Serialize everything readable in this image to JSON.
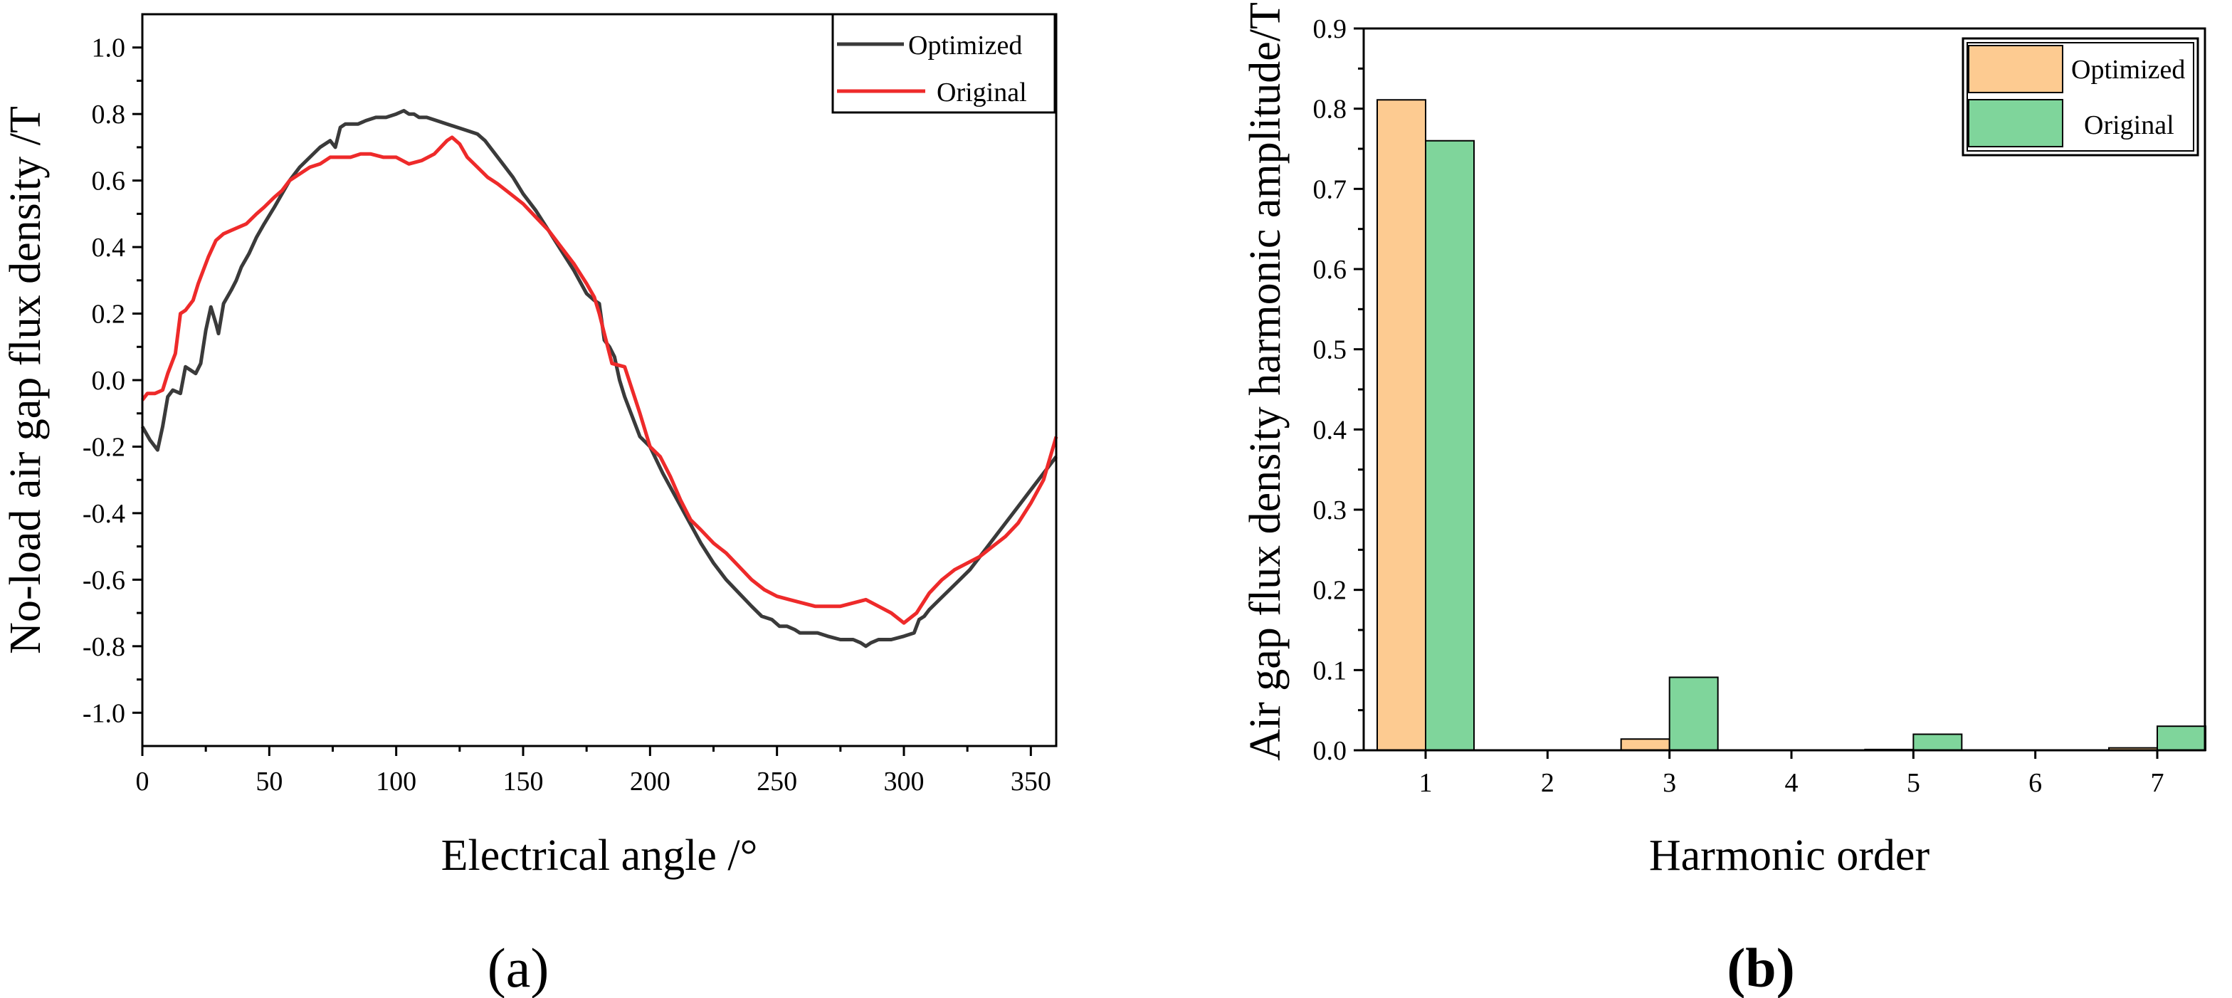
{
  "chart_data": [
    {
      "type": "line",
      "panel_label": "a",
      "title": "",
      "xlabel": "Electrical angle /°",
      "ylabel": "No-load air gap flux density /T",
      "xlim": [
        0,
        360
      ],
      "ylim": [
        -1.1,
        1.1
      ],
      "xticks": [
        0,
        50,
        100,
        150,
        200,
        250,
        300,
        350
      ],
      "yticks": [
        -1.0,
        -0.8,
        -0.6,
        -0.4,
        -0.2,
        0.0,
        0.2,
        0.4,
        0.6,
        0.8,
        1.0
      ],
      "ytick_labels": [
        "-1.0",
        "-0.8",
        "-0.6",
        "-0.4",
        "-0.2",
        "0.0",
        "0.2",
        "0.4",
        "0.6",
        "0.8",
        "1.0"
      ],
      "legend_position": "top-right",
      "series": [
        {
          "name": "Optimized",
          "color": "#3a3a3a",
          "x": [
            0,
            3,
            6,
            8,
            10,
            12,
            15,
            17,
            19,
            21,
            23,
            25,
            27,
            29,
            30,
            32,
            35,
            37,
            39,
            42,
            45,
            48,
            52,
            55,
            58,
            62,
            66,
            70,
            74,
            76,
            78,
            80,
            82,
            85,
            88,
            92,
            96,
            100,
            103,
            105,
            107,
            109,
            112,
            116,
            120,
            124,
            128,
            132,
            135,
            138,
            142,
            146,
            150,
            155,
            160,
            165,
            170,
            175,
            178,
            180,
            182,
            184,
            186,
            188,
            190,
            193,
            196,
            200,
            205,
            210,
            215,
            220,
            225,
            230,
            235,
            240,
            244,
            248,
            251,
            254,
            257,
            259,
            262,
            266,
            270,
            275,
            280,
            283,
            285,
            287,
            290,
            295,
            300,
            304,
            306,
            308,
            310,
            314,
            318,
            322,
            326,
            330,
            335,
            340,
            345,
            350,
            355,
            360
          ],
          "values": [
            -0.14,
            -0.18,
            -0.21,
            -0.14,
            -0.05,
            -0.03,
            -0.04,
            0.04,
            0.03,
            0.02,
            0.05,
            0.15,
            0.22,
            0.17,
            0.14,
            0.23,
            0.27,
            0.3,
            0.34,
            0.38,
            0.43,
            0.47,
            0.52,
            0.56,
            0.6,
            0.64,
            0.67,
            0.7,
            0.72,
            0.7,
            0.76,
            0.77,
            0.77,
            0.77,
            0.78,
            0.79,
            0.79,
            0.8,
            0.81,
            0.8,
            0.8,
            0.79,
            0.79,
            0.78,
            0.77,
            0.76,
            0.75,
            0.74,
            0.72,
            0.69,
            0.65,
            0.61,
            0.56,
            0.51,
            0.45,
            0.39,
            0.33,
            0.26,
            0.24,
            0.23,
            0.12,
            0.1,
            0.07,
            0.0,
            -0.05,
            -0.11,
            -0.17,
            -0.2,
            -0.28,
            -0.35,
            -0.42,
            -0.49,
            -0.55,
            -0.6,
            -0.64,
            -0.68,
            -0.71,
            -0.72,
            -0.74,
            -0.74,
            -0.75,
            -0.76,
            -0.76,
            -0.76,
            -0.77,
            -0.78,
            -0.78,
            -0.79,
            -0.8,
            -0.79,
            -0.78,
            -0.78,
            -0.77,
            -0.76,
            -0.72,
            -0.71,
            -0.69,
            -0.66,
            -0.63,
            -0.6,
            -0.57,
            -0.53,
            -0.48,
            -0.43,
            -0.38,
            -0.33,
            -0.28,
            -0.23
          ]
        },
        {
          "name": "Original",
          "color": "#ee2a2a",
          "x": [
            0,
            2,
            5,
            8,
            10,
            13,
            15,
            17,
            20,
            22,
            24,
            26,
            29,
            32,
            35,
            38,
            41,
            45,
            48,
            52,
            55,
            58,
            62,
            66,
            70,
            74,
            78,
            82,
            86,
            90,
            95,
            100,
            105,
            110,
            115,
            120,
            122,
            125,
            128,
            132,
            136,
            140,
            145,
            150,
            155,
            160,
            165,
            170,
            175,
            178,
            180,
            182,
            185,
            190,
            193,
            196,
            200,
            204,
            208,
            212,
            216,
            220,
            225,
            230,
            235,
            240,
            245,
            250,
            255,
            260,
            265,
            270,
            275,
            280,
            285,
            290,
            295,
            300,
            305,
            310,
            315,
            320,
            325,
            330,
            335,
            340,
            345,
            350,
            355,
            360
          ],
          "values": [
            -0.06,
            -0.04,
            -0.04,
            -0.03,
            0.02,
            0.08,
            0.2,
            0.21,
            0.24,
            0.29,
            0.33,
            0.37,
            0.42,
            0.44,
            0.45,
            0.46,
            0.47,
            0.5,
            0.52,
            0.55,
            0.57,
            0.6,
            0.62,
            0.64,
            0.65,
            0.67,
            0.67,
            0.67,
            0.68,
            0.68,
            0.67,
            0.67,
            0.65,
            0.66,
            0.68,
            0.72,
            0.73,
            0.71,
            0.67,
            0.64,
            0.61,
            0.59,
            0.56,
            0.53,
            0.49,
            0.45,
            0.4,
            0.35,
            0.29,
            0.25,
            0.2,
            0.14,
            0.05,
            0.04,
            -0.03,
            -0.1,
            -0.2,
            -0.23,
            -0.29,
            -0.36,
            -0.42,
            -0.45,
            -0.49,
            -0.52,
            -0.56,
            -0.6,
            -0.63,
            -0.65,
            -0.66,
            -0.67,
            -0.68,
            -0.68,
            -0.68,
            -0.67,
            -0.66,
            -0.68,
            -0.7,
            -0.73,
            -0.7,
            -0.64,
            -0.6,
            -0.57,
            -0.55,
            -0.53,
            -0.5,
            -0.47,
            -0.43,
            -0.37,
            -0.3,
            -0.17
          ]
        }
      ]
    },
    {
      "type": "bar",
      "panel_label": "b",
      "title": "",
      "xlabel": "Harmonic order",
      "ylabel": "Air gap flux density harmonic amplitude/T",
      "categories": [
        "1",
        "2",
        "3",
        "4",
        "5",
        "6",
        "7"
      ],
      "ylim": [
        0.0,
        0.9
      ],
      "yticks": [
        0.0,
        0.1,
        0.2,
        0.3,
        0.4,
        0.5,
        0.6,
        0.7,
        0.8,
        0.9
      ],
      "ytick_labels": [
        "0.0",
        "0.1",
        "0.2",
        "0.3",
        "0.4",
        "0.5",
        "0.6",
        "0.7",
        "0.8",
        "0.9"
      ],
      "legend_position": "top-right",
      "series": [
        {
          "name": "Optimized",
          "color": "#fdcb91",
          "values": [
            0.811,
            0.0,
            0.014,
            0.0,
            0.001,
            0.0,
            0.003
          ]
        },
        {
          "name": "Original",
          "color": "#7fd59b",
          "values": [
            0.76,
            0.0,
            0.091,
            0.0,
            0.02,
            0.0,
            0.03
          ]
        }
      ]
    }
  ]
}
